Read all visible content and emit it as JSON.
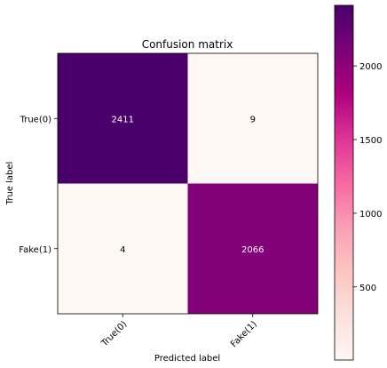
{
  "chart_data": {
    "type": "heatmap",
    "title": "Confusion matrix",
    "xlabel": "Predicted label",
    "ylabel": "True label",
    "x_categories": [
      "True(0)",
      "Fake(1)"
    ],
    "y_categories": [
      "True(0)",
      "Fake(1)"
    ],
    "values": [
      [
        2411,
        9
      ],
      [
        4,
        2066
      ]
    ],
    "colormap": "RdPu",
    "color_range": [
      4,
      2411
    ],
    "colorbar_ticks": [
      500,
      1000,
      1500,
      2000
    ],
    "colors": {
      "low": "#fff7f3",
      "high": "#49006a",
      "text_on_dark": "#ffffff",
      "text_on_light": "#000000"
    }
  }
}
